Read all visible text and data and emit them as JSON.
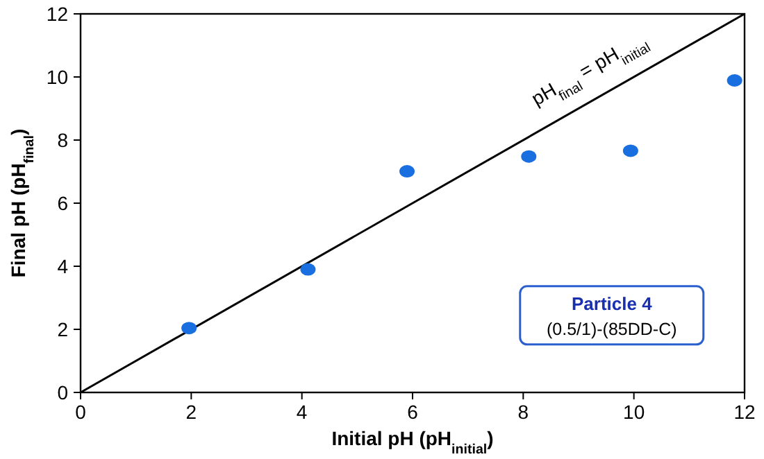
{
  "chart_data": {
    "type": "scatter",
    "xlabel": "Initial pH (pH$_{initial}$)",
    "ylabel": "Final pH (pH$_{final}$)",
    "xlim": [
      0,
      12
    ],
    "xticks": [
      0,
      2,
      4,
      6,
      8,
      10,
      12
    ],
    "ylim": [
      0,
      12
    ],
    "yticks": [
      0,
      2,
      4,
      6,
      8,
      10,
      12
    ],
    "grid": false,
    "marker": "circle",
    "series": [
      {
        "type": "line",
        "color": "#000000",
        "x": [
          0,
          12
        ],
        "values": [
          0,
          12
        ],
        "line_style": "solid",
        "marker": "none"
      },
      {
        "color": "#1a6fe0",
        "x": [
          1.96,
          4.11,
          5.9,
          8.1,
          9.94,
          11.82
        ],
        "values": [
          2.04,
          3.9,
          7.01,
          7.48,
          7.66,
          9.89
        ]
      }
    ],
    "annotations": [
      "pH$_{final}$ = pH$_{initial}$",
      "Particle 4",
      "(0.5/1)-(85DD-C)"
    ]
  }
}
